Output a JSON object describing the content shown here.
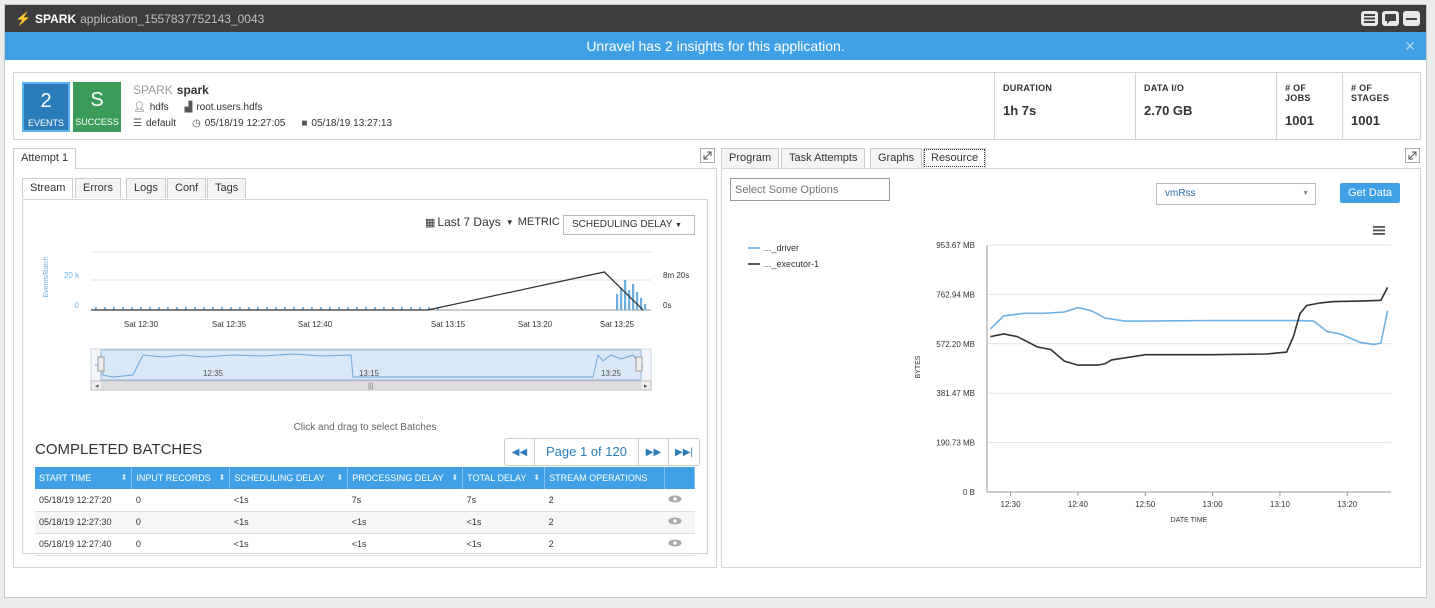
{
  "titlebar": {
    "app_name": "SPARK",
    "app_id": "application_1557837752143_0043"
  },
  "insight": {
    "text": "Unravel has 2 insights for this application."
  },
  "summary": {
    "events_count": "2",
    "events_label": "EVENTS",
    "status_letter": "S",
    "status_label": "SUCCESS",
    "app_type": "SPARK",
    "app_name": "spark",
    "user": "hdfs",
    "queue": "root.users.hdfs",
    "cluster": "default",
    "start_time": "05/18/19 12:27:05",
    "end_time": "05/18/19 13:27:13",
    "kpis": [
      {
        "label": "DURATION",
        "value": "1h 7s"
      },
      {
        "label": "DATA I/O",
        "value": "2.70 GB"
      },
      {
        "label": "# OF JOBS",
        "value": "1001"
      },
      {
        "label": "# OF STAGES",
        "value": "1001"
      }
    ]
  },
  "left": {
    "attempt_tab": "Attempt 1",
    "tabs": [
      "Stream",
      "Errors",
      "Logs",
      "Conf",
      "Tags"
    ],
    "range_label": "Last 7 Days",
    "metric_label": "METRIC",
    "metric_value": "SCHEDULING DELAY",
    "drag_hint": "Click and drag to select Batches",
    "section_title": "COMPLETED BATCHES",
    "pager": "Page 1 of 120",
    "columns": [
      "START TIME",
      "INPUT RECORDS",
      "SCHEDULING DELAY",
      "PROCESSING DELAY",
      "TOTAL DELAY",
      "STREAM OPERATIONS"
    ],
    "rows": [
      [
        "05/18/19 12:27:20",
        "0",
        "<1s",
        "7s",
        "7s",
        "2"
      ],
      [
        "05/18/19 12:27:30",
        "0",
        "<1s",
        "<1s",
        "<1s",
        "2"
      ],
      [
        "05/18/19 12:27:40",
        "0",
        "<1s",
        "<1s",
        "<1s",
        "2"
      ]
    ]
  },
  "right": {
    "tabs": [
      "Program",
      "Task Attempts",
      "Graphs",
      "Resource"
    ],
    "select_placeholder": "Select Some Options",
    "metric_select": "vmRss",
    "get_data": "Get Data"
  },
  "chart_data": [
    {
      "type": "line",
      "title": "",
      "ylabel": "Events/Batch",
      "x_ticks": [
        "Sat 12:30",
        "Sat 12:35",
        "Sat 12:40",
        "Sat 13:15",
        "Sat 13:20",
        "Sat 13:25"
      ],
      "y_left_ticks": [
        "20 k",
        "0"
      ],
      "y_right_ticks": [
        "8m 20s",
        "0s"
      ],
      "series": [
        {
          "name": "",
          "color": "#333333",
          "x": [
            0,
            0.61,
            0.93,
            1.0
          ],
          "y": [
            0,
            0,
            500,
            0
          ]
        },
        {
          "name": "",
          "color": "#6fb0e3",
          "bars": true
        }
      ],
      "navigator_ticks": [
        "12:35",
        "13:15",
        "13:25"
      ]
    },
    {
      "type": "line",
      "ylabel": "BYTES",
      "xlabel": "DATE TIME",
      "y_ticks": [
        "953.67 MB",
        "762.94 MB",
        "572.20 MB",
        "381.47 MB",
        "190.73 MB",
        "0 B"
      ],
      "x_ticks": [
        "12:30",
        "12:40",
        "12:50",
        "13:00",
        "13:10",
        "13:20"
      ],
      "ylim": [
        0,
        953.67
      ],
      "series": [
        {
          "name": "..._driver",
          "color": "#6fb0e3",
          "x": [
            "12:27",
            "12:29",
            "12:32",
            "12:35",
            "12:38",
            "12:40",
            "12:42",
            "12:44",
            "12:47",
            "12:50",
            "13:00",
            "13:10",
            "13:12",
            "13:15",
            "13:17",
            "13:19",
            "13:22",
            "13:24",
            "13:25",
            "13:26"
          ],
          "y": [
            630,
            680,
            690,
            690,
            695,
            712,
            700,
            672,
            660,
            660,
            662,
            662,
            662,
            660,
            620,
            610,
            577,
            570,
            575,
            700
          ]
        },
        {
          "name": "..._executor-1",
          "color": "#333333",
          "x": [
            "12:27",
            "12:29",
            "12:31",
            "12:34",
            "12:36",
            "12:38",
            "12:40",
            "12:43",
            "12:44",
            "12:45",
            "12:50",
            "13:00",
            "13:08",
            "13:11",
            "13:12",
            "13:13",
            "13:14",
            "13:16",
            "13:18",
            "13:22",
            "13:25",
            "13:26"
          ],
          "y": [
            600,
            610,
            600,
            560,
            550,
            505,
            490,
            490,
            495,
            510,
            530,
            530,
            533,
            540,
            600,
            690,
            720,
            730,
            735,
            737,
            740,
            790
          ]
        }
      ]
    }
  ]
}
